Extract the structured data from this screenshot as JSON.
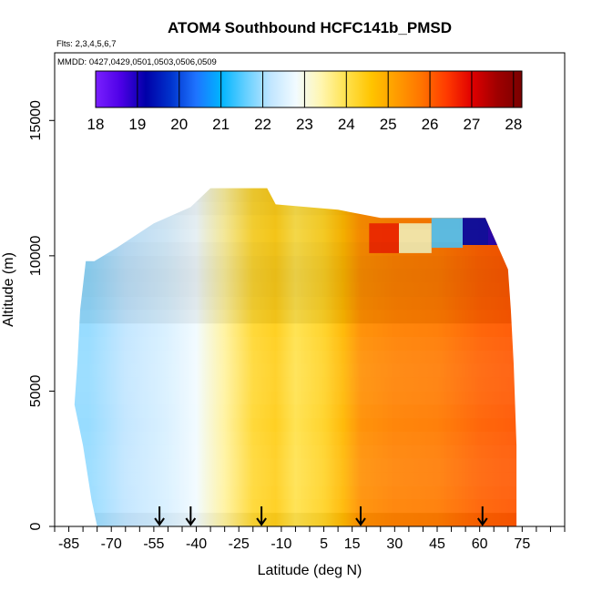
{
  "chart_data": {
    "type": "heatmap",
    "title": "ATOM4 Southbound HCFC141b_PMSD",
    "flights_note": "Flts: 2,3,4,5,6,7",
    "dates_note": "MMDD: 0427,0429,0501,0503,0506,0509",
    "xlabel": "Latitude (deg N)",
    "ylabel": "Altitude (m)",
    "xlim": [
      -90,
      90
    ],
    "ylim": [
      0,
      17500
    ],
    "x_ticks": [
      -85,
      -70,
      -55,
      -40,
      -25,
      -10,
      5,
      15,
      30,
      45,
      60,
      75
    ],
    "x_minor_step": 5,
    "y_ticks": [
      0,
      5000,
      10000,
      15000
    ],
    "colorbar": {
      "min": 18,
      "max": 28.2,
      "ticks": [
        18,
        19,
        20,
        21,
        22,
        23,
        24,
        25,
        26,
        27,
        28
      ],
      "colors": [
        "#7a20ff",
        "#4d00e6",
        "#0000a8",
        "#0033cc",
        "#1e73ff",
        "#00b4ff",
        "#66d0ff",
        "#c2e6ff",
        "#f2fbff",
        "#fff6b0",
        "#ffe24d",
        "#ffc400",
        "#ff9c00",
        "#ff7400",
        "#ff3a00",
        "#e10000",
        "#a00000",
        "#7a0000"
      ]
    },
    "profile_arrows_lat": [
      -53,
      -42,
      -17,
      18,
      61
    ],
    "field": {
      "bands": [
        {
          "lat": -78,
          "value": 21.9
        },
        {
          "lat": -65,
          "value": 22.2
        },
        {
          "lat": -50,
          "value": 22.5
        },
        {
          "lat": -40,
          "value": 22.8
        },
        {
          "lat": -30,
          "value": 23.5
        },
        {
          "lat": -20,
          "value": 24.2
        },
        {
          "lat": -12,
          "value": 24.4
        },
        {
          "lat": -5,
          "value": 24.0
        },
        {
          "lat": 5,
          "value": 24.3
        },
        {
          "lat": 12,
          "value": 24.8
        },
        {
          "lat": 18,
          "value": 25.4
        },
        {
          "lat": 30,
          "value": 25.6
        },
        {
          "lat": 45,
          "value": 25.7
        },
        {
          "lat": 60,
          "value": 26.0
        },
        {
          "lat": 72,
          "value": 26.1
        }
      ],
      "ceiling": [
        {
          "lat": -76,
          "alt": 9800
        },
        {
          "lat": -68,
          "alt": 10300
        },
        {
          "lat": -55,
          "alt": 11200
        },
        {
          "lat": -42,
          "alt": 11800
        },
        {
          "lat": -35,
          "alt": 12500
        },
        {
          "lat": -15,
          "alt": 12500
        },
        {
          "lat": -12,
          "alt": 11900
        },
        {
          "lat": 10,
          "alt": 11700
        },
        {
          "lat": 25,
          "alt": 11400
        },
        {
          "lat": 40,
          "alt": 11400
        },
        {
          "lat": 62,
          "alt": 11400
        },
        {
          "lat": 70,
          "alt": 9500
        }
      ],
      "left_edge": [
        {
          "alt": 0,
          "lat": -75
        },
        {
          "alt": 1000,
          "lat": -77
        },
        {
          "alt": 3000,
          "lat": -80
        },
        {
          "alt": 4500,
          "lat": -83
        },
        {
          "alt": 6000,
          "lat": -82
        },
        {
          "alt": 8000,
          "lat": -81
        },
        {
          "alt": 9800,
          "lat": -79
        }
      ],
      "right_edge": [
        {
          "alt": 0,
          "lat": 73
        },
        {
          "alt": 3000,
          "lat": 73
        },
        {
          "alt": 6000,
          "lat": 72
        },
        {
          "alt": 8000,
          "lat": 71
        },
        {
          "alt": 9500,
          "lat": 70
        }
      ],
      "high_alt_anomaly": [
        {
          "lat": 25,
          "alt": 10700,
          "value": 26.6
        },
        {
          "lat": 38,
          "alt": 10700,
          "value": 23.3
        },
        {
          "lat": 48,
          "alt": 10900,
          "value": 21.5
        },
        {
          "lat": 60,
          "alt": 11000,
          "value": 19.3
        },
        {
          "lat": 66,
          "alt": 11000,
          "value": 19.0
        }
      ]
    }
  }
}
